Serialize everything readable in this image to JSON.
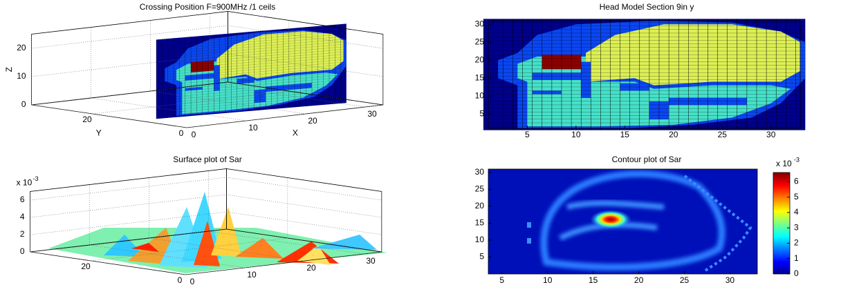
{
  "chart_data": [
    {
      "type": "voxel3d",
      "title": "Crossing Position F=900MHz /1 ceils",
      "xlabel": "X",
      "ylabel": "Y",
      "zlabel": "Z",
      "xlim": [
        0,
        33
      ],
      "ylim": [
        0,
        33
      ],
      "zlim": [
        0,
        25
      ],
      "xticks": [
        0,
        10,
        20,
        30
      ],
      "yticks": [
        0,
        20
      ],
      "zticks": [
        0,
        10,
        20
      ],
      "grid": true
    },
    {
      "type": "heatmap",
      "title": "Head Model Section 9in y",
      "xlim": [
        1,
        33
      ],
      "ylim": [
        1,
        31
      ],
      "xticks": [
        5,
        10,
        15,
        20,
        25,
        30
      ],
      "yticks": [
        5,
        10,
        15,
        20,
        25,
        30
      ]
    },
    {
      "type": "surface3d",
      "title": "Surface plot of Sar",
      "multiplier": "x 10",
      "exponent": "-3",
      "xlim": [
        0,
        33
      ],
      "ylim": [
        0,
        33
      ],
      "zlim": [
        0,
        7
      ],
      "xticks": [
        0,
        10,
        20,
        30
      ],
      "yticks": [
        0,
        20
      ],
      "zticks": [
        0,
        2,
        4,
        6
      ],
      "grid": true
    },
    {
      "type": "contour",
      "title": "Contour plot of Sar",
      "xlim": [
        3.5,
        33
      ],
      "ylim": [
        0,
        31
      ],
      "xticks": [
        5,
        10,
        15,
        20,
        25,
        30
      ],
      "yticks": [
        5,
        10,
        15,
        20,
        25,
        30
      ],
      "colorbar": {
        "clim": [
          0,
          6.6
        ],
        "ticks": [
          0,
          1,
          2,
          3,
          4,
          5,
          6
        ],
        "multiplier": "x 10",
        "exponent": "-3"
      }
    }
  ]
}
